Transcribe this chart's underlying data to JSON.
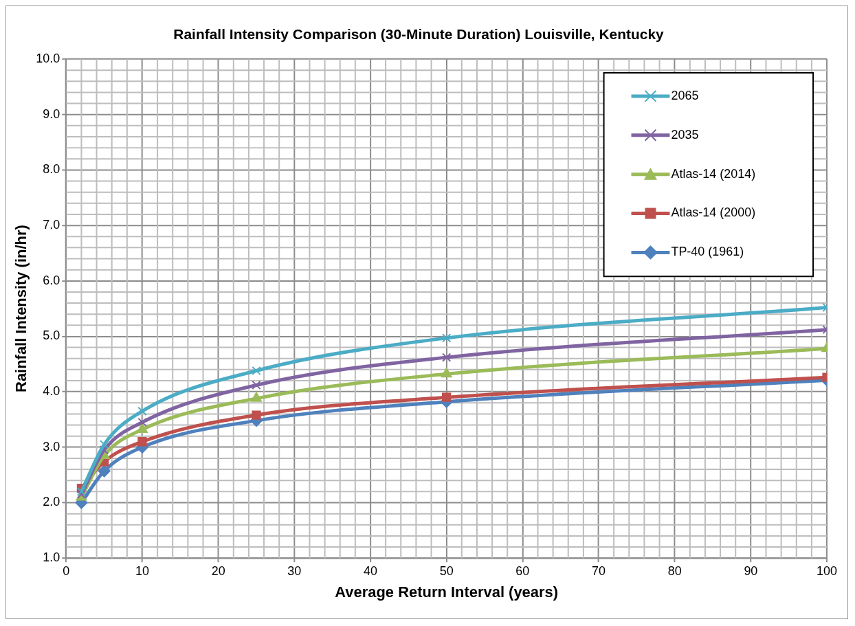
{
  "chart_data": {
    "type": "line",
    "title": "Rainfall Intensity Comparison (30-Minute Duration) Louisville, Kentucky",
    "xlabel": "Average Return Interval (years)",
    "ylabel": "Rainfall Intensity (in/hr)",
    "x": [
      2,
      5,
      10,
      25,
      50,
      100
    ],
    "series": [
      {
        "name": "2065",
        "color": "#4bacc6",
        "marker": "cross",
        "values": [
          2.2,
          3.05,
          3.65,
          4.38,
          4.97,
          5.52
        ]
      },
      {
        "name": "2035",
        "color": "#8064a2",
        "marker": "cross",
        "values": [
          2.15,
          2.95,
          3.45,
          4.12,
          4.62,
          5.12
        ]
      },
      {
        "name": "Atlas-14 (2014)",
        "color": "#9bbb59",
        "marker": "triangle",
        "values": [
          2.1,
          2.85,
          3.32,
          3.88,
          4.32,
          4.78
        ]
      },
      {
        "name": "Atlas-14 (2000)",
        "color": "#c0504d",
        "marker": "square",
        "values": [
          2.26,
          2.74,
          3.1,
          3.58,
          3.9,
          4.26
        ]
      },
      {
        "name": "TP-40 (1961)",
        "color": "#4f81bd",
        "marker": "diamond",
        "values": [
          2.0,
          2.57,
          3.0,
          3.48,
          3.82,
          4.21
        ]
      }
    ],
    "xlim": [
      0,
      100
    ],
    "xticks": [
      0,
      10,
      20,
      30,
      40,
      50,
      60,
      70,
      80,
      90,
      100
    ],
    "ylim": [
      1,
      10
    ],
    "yticks": [
      {
        "value": 1,
        "label": "1.0"
      },
      {
        "value": 2,
        "label": "2.0"
      },
      {
        "value": 3,
        "label": "3.0"
      },
      {
        "value": 4,
        "label": "4.0"
      },
      {
        "value": 5,
        "label": "5.0"
      },
      {
        "value": 6,
        "label": "6.0"
      },
      {
        "value": 7,
        "label": "7.0"
      },
      {
        "value": 8,
        "label": "8.0"
      },
      {
        "value": 9,
        "label": "9.0"
      },
      {
        "value": 10,
        "label": "10.0"
      }
    ],
    "grid": true,
    "legend": "top right",
    "line_style": "solid"
  }
}
